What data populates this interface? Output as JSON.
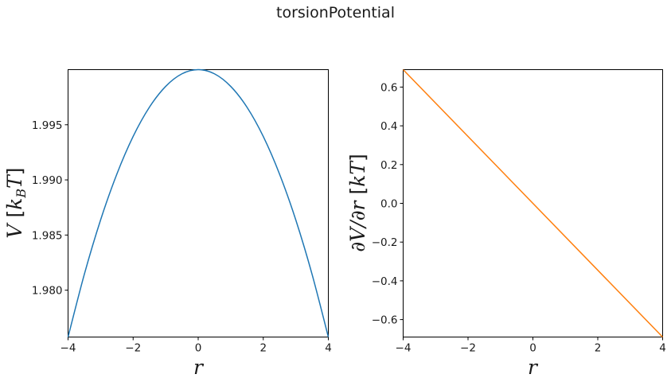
{
  "figure": {
    "suptitle": "torsionPotential"
  },
  "chart_data": [
    {
      "type": "line",
      "xlabel": "r",
      "ylabel": "V [k_B T]",
      "ylabel_parts": {
        "v": "V",
        "open": " [",
        "k": "k",
        "sub": "B",
        "t": "T",
        "close": "]"
      },
      "xlim": [
        -4,
        4
      ],
      "ylim": [
        1.97575,
        2.0
      ],
      "xticks": [
        -4,
        -2,
        0,
        2,
        4
      ],
      "xtick_labels": [
        "−4",
        "−2",
        "0",
        "2",
        "4"
      ],
      "yticks": [
        1.98,
        1.985,
        1.99,
        1.995
      ],
      "ytick_labels": [
        "1.980",
        "1.985",
        "1.990",
        "1.995"
      ],
      "series": [
        {
          "color": "#1f77b4",
          "x": [
            -4,
            -3.5,
            -3,
            -2.5,
            -2,
            -1.5,
            -1,
            -0.5,
            0,
            0.5,
            1,
            1.5,
            2,
            2.5,
            3,
            3.5,
            4
          ],
          "y": [
            1.97575,
            1.98144,
            1.98637,
            1.99053,
            1.99394,
            1.99659,
            1.99848,
            1.99962,
            2.0,
            1.99962,
            1.99848,
            1.99659,
            1.99394,
            1.99053,
            1.98637,
            1.98144,
            1.97575
          ]
        }
      ],
      "grid": false
    },
    {
      "type": "line",
      "xlabel": "r",
      "ylabel": "∂V/∂r [kT]",
      "ylabel_parts": {
        "dv": "∂V/∂r",
        "open": " [",
        "kt": "kT",
        "close": "]"
      },
      "xlim": [
        -4,
        4
      ],
      "ylim": [
        -0.69,
        0.69
      ],
      "xticks": [
        -4,
        -2,
        0,
        2,
        4
      ],
      "xtick_labels": [
        "−4",
        "−2",
        "0",
        "2",
        "4"
      ],
      "yticks": [
        -0.6,
        -0.4,
        -0.2,
        0.0,
        0.2,
        0.4,
        0.6
      ],
      "ytick_labels": [
        "−0.6",
        "−0.4",
        "−0.2",
        "0.0",
        "0.2",
        "0.4",
        "0.6"
      ],
      "series": [
        {
          "color": "#ff7f0e",
          "x": [
            -4,
            4
          ],
          "y": [
            0.69,
            -0.69
          ]
        }
      ],
      "grid": false
    }
  ]
}
